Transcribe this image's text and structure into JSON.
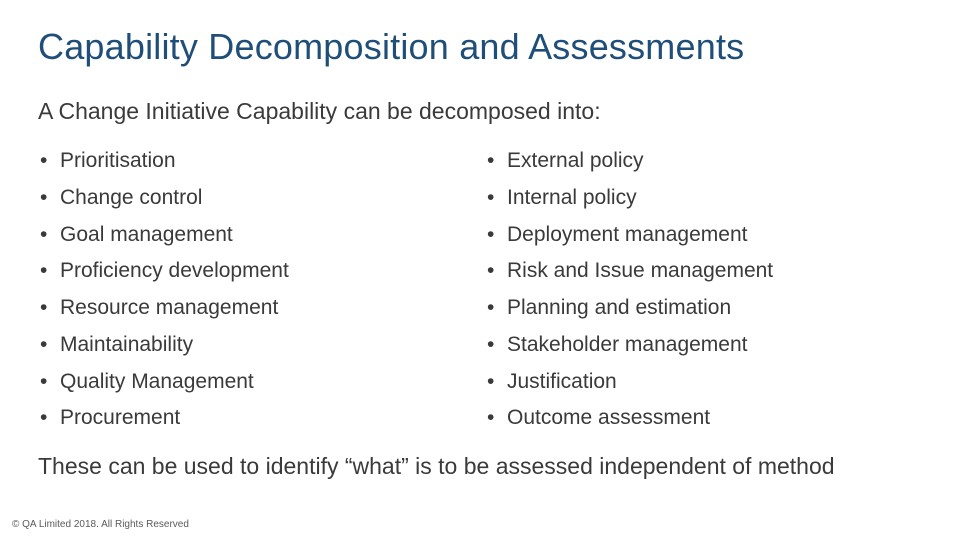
{
  "title": "Capability Decomposition and Assessments",
  "subtitle": "A Change Initiative Capability can be decomposed into:",
  "columns": {
    "left": [
      "Prioritisation",
      "Change control",
      "Goal management",
      "Proficiency development",
      "Resource management",
      "Maintainability",
      "Quality Management",
      "Procurement"
    ],
    "right": [
      "External policy",
      "Internal policy",
      "Deployment management",
      "Risk and Issue management",
      "Planning and estimation",
      "Stakeholder management",
      "Justification",
      "Outcome assessment"
    ]
  },
  "footnote": "These can be used to identify “what” is to be assessed independent of method",
  "copyright": "© QA Limited 2018. All Rights Reserved",
  "colors": {
    "title": "#1f4e79",
    "body_text": "#3a3a3a",
    "background": "#ffffff"
  },
  "fonts": {
    "title_size": 36,
    "subtitle_size": 23,
    "list_size": 21,
    "footnote_size": 23,
    "copyright_size": 10
  }
}
